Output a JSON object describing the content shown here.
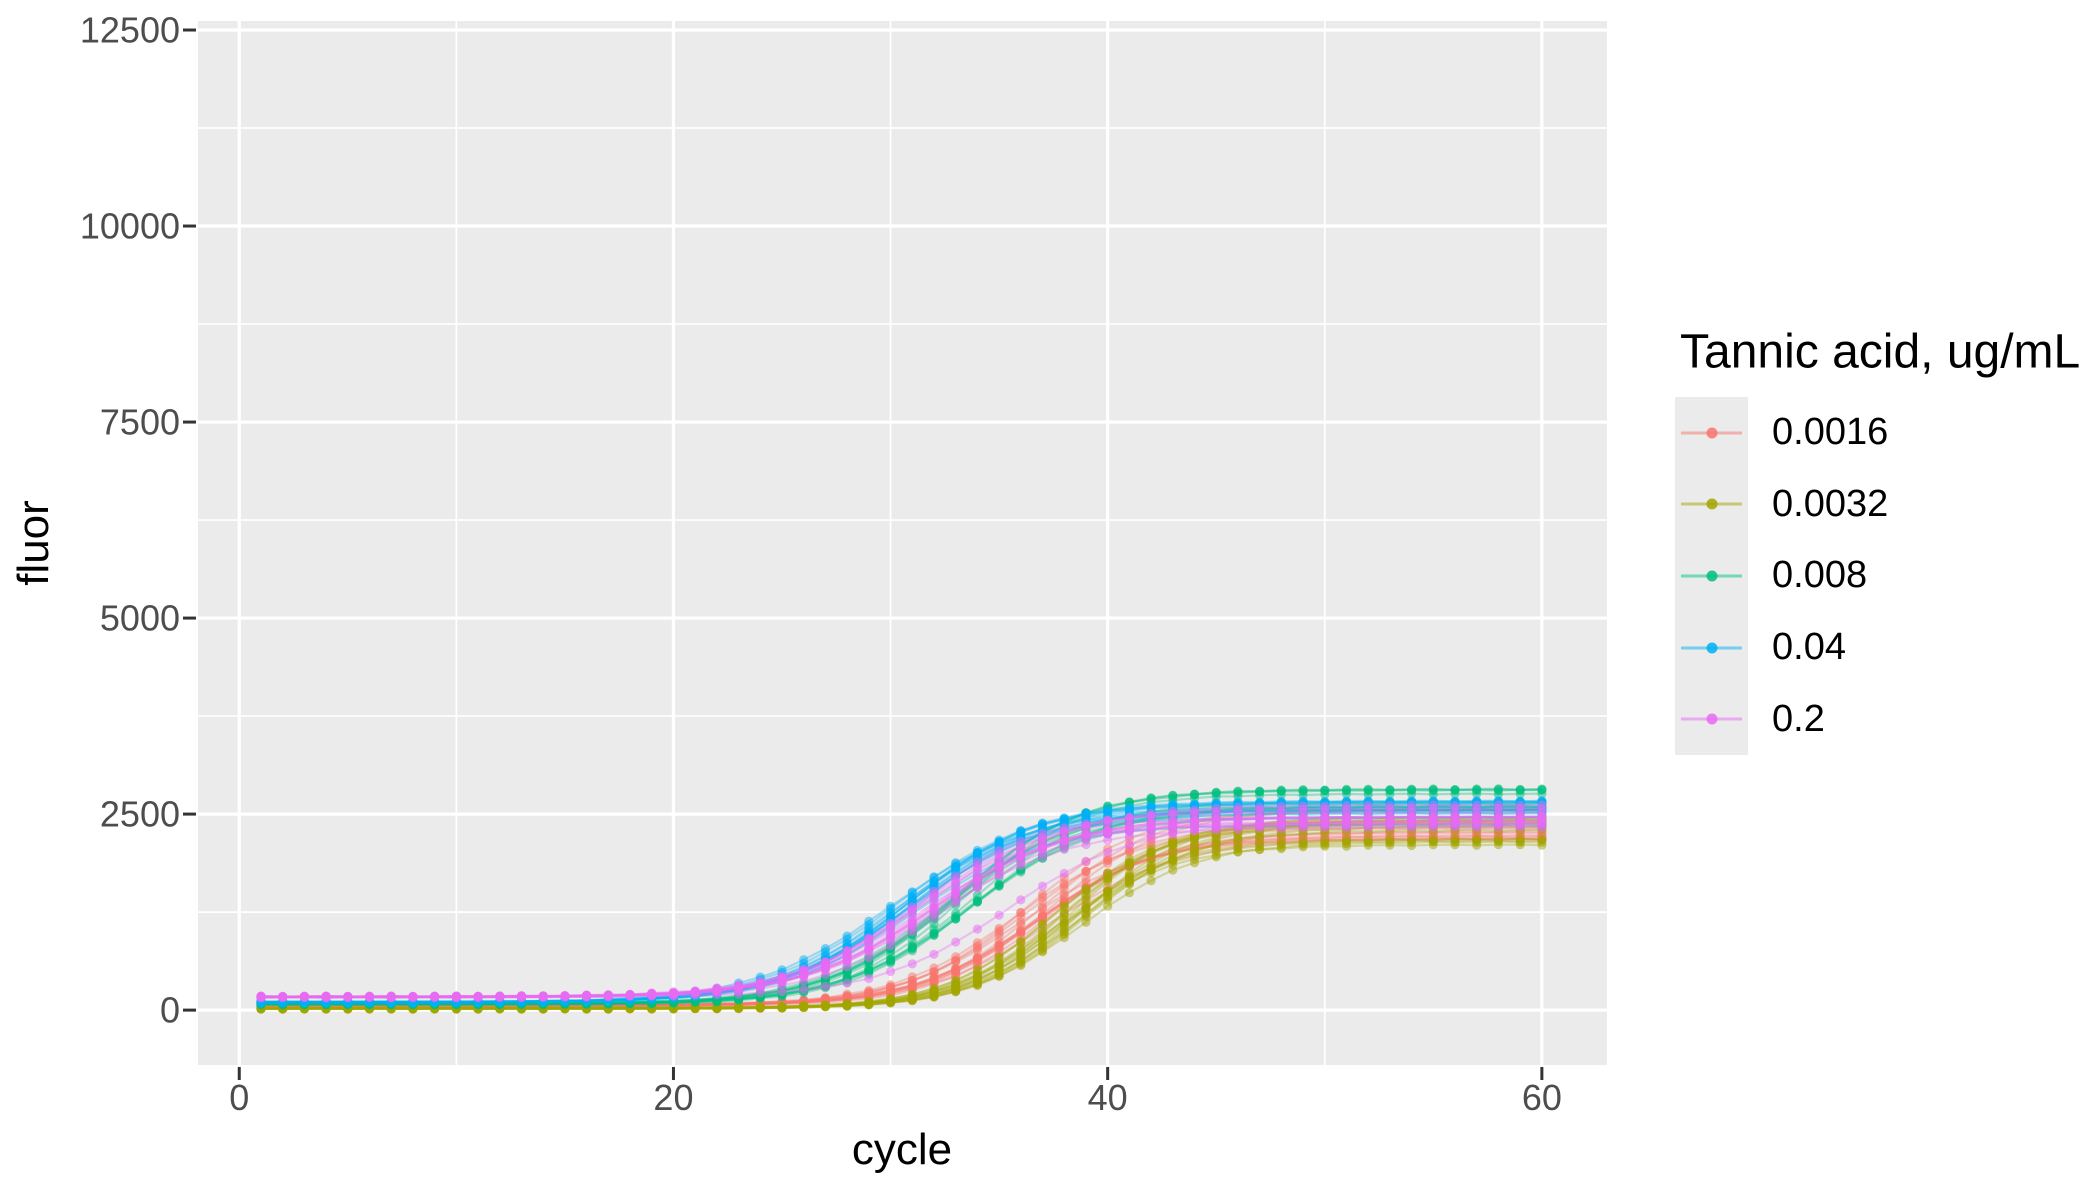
{
  "figure": {
    "background": "#FFFFFF",
    "panel_background": "#EBEBEB",
    "grid_color": "#FFFFFF",
    "tick_color": "#333333",
    "tick_label_color": "#4D4D4D",
    "axis_title_color": "#000000"
  },
  "chart_data": {
    "type": "line",
    "title": "",
    "xlabel": "cycle",
    "ylabel": "fluor",
    "grid": true,
    "legend": {
      "title": "Tannic acid, ug/mL",
      "position": "right"
    },
    "x_major_ticks": [
      0,
      20,
      40,
      60
    ],
    "x_minor_ticks": [
      10,
      30,
      50
    ],
    "y_major_ticks": [
      0,
      2500,
      5000,
      7500,
      10000,
      12500
    ],
    "y_minor_ticks": [
      1250,
      3750,
      6250,
      8750,
      11250
    ],
    "xlim": [
      -1.9,
      63.0
    ],
    "ylim": [
      -700,
      12615
    ],
    "cycle_range": [
      1,
      60
    ],
    "anchor_cycles": [
      5,
      10,
      15,
      20,
      25,
      30,
      35,
      40,
      45,
      50,
      55,
      60
    ],
    "series": [
      {
        "name": "0.0016",
        "color": "#F8766D",
        "n_replicates": 13,
        "model": {
          "type": "logistic",
          "baseline": 60,
          "amplitude": 2290,
          "midpoint": 36.6,
          "scale": 2.8
        },
        "spread": {
          "amplitude_frac": 0.09,
          "midpoint_cycles": 0.9
        },
        "anchor_values": [
          60,
          60,
          61,
          66,
          96,
          258,
          887,
          1826,
          2242,
          2331,
          2347,
          2350
        ]
      },
      {
        "name": "0.0032",
        "color": "#A3A500",
        "n_replicates": 14,
        "model": {
          "type": "logistic",
          "baseline": 25,
          "amplitude": 2275,
          "midpoint": 38.1,
          "scale": 2.6
        },
        "spread": {
          "amplitude_frac": 0.09,
          "midpoint_cycles": 0.9
        },
        "anchor_values": [
          25,
          25,
          26,
          27,
          40,
          121,
          555,
          1561,
          2150,
          2277,
          2297,
          2300
        ]
      },
      {
        "name": "0.008",
        "color": "#00BF7D",
        "n_replicates": 13,
        "model": {
          "type": "logistic",
          "baseline": 80,
          "amplitude": 2570,
          "midpoint": 33.2,
          "scale": 2.9
        },
        "spread": {
          "amplitude_frac": 0.08,
          "midpoint_cycles": 0.8
        },
        "anchor_values": [
          80,
          80,
          82,
          107,
          224,
          722,
          1751,
          2424,
          2606,
          2642,
          2648,
          2650
        ]
      },
      {
        "name": "0.04",
        "color": "#00B0F6",
        "n_replicates": 13,
        "model": {
          "type": "logistic",
          "baseline": 100,
          "amplitude": 2400,
          "midpoint": 30.6,
          "scale": 3.0
        },
        "spread": {
          "amplitude_frac": 0.07,
          "midpoint_cycles": 0.8
        },
        "anchor_values": [
          100,
          101,
          113,
          168,
          420,
          1180,
          2051,
          2400,
          2481,
          2497,
          2500,
          2500
        ]
      },
      {
        "name": "0.2",
        "color": "#E76BF3",
        "n_replicates": 12,
        "model": {
          "type": "logistic",
          "baseline": 170,
          "amplitude": 2310,
          "midpoint": 31.8,
          "scale": 3.0
        },
        "spread": {
          "amplitude_frac": 0.07,
          "midpoint_cycles": 0.8
        },
        "outlier_replicates": [
          {
            "baseline": 170,
            "amplitude": 2240,
            "midpoint": 35.4,
            "scale": 3.0
          }
        ],
        "anchor_values": [
          170,
          171,
          179,
          215,
          386,
          988,
          1889,
          2339,
          2452,
          2475,
          2479,
          2480
        ]
      }
    ]
  }
}
